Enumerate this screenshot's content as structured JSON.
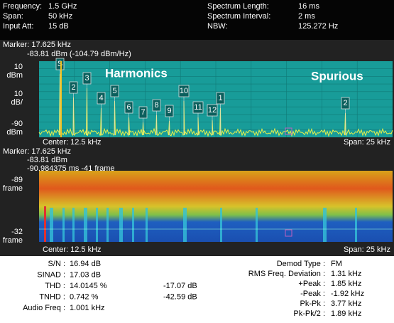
{
  "header": {
    "left": [
      {
        "label": "Frequency:",
        "value": "1.5 GHz"
      },
      {
        "label": "Span:",
        "value": "50 kHz"
      },
      {
        "label": "Input Att:",
        "value": "15 dB"
      }
    ],
    "right": [
      {
        "label": "Spectrum Length:",
        "value": "16 ms"
      },
      {
        "label": "Spectrum Interval:",
        "value": "2 ms"
      },
      {
        "label": "NBW:",
        "value": "125.272 Hz"
      }
    ]
  },
  "spectrum": {
    "marker": "Marker: 17.625 kHz",
    "marker_level": "-83.81 dBm (-104.79 dBm/Hz)",
    "ref_value": "10",
    "ref_unit": "dBm",
    "scale_value": "10",
    "scale_unit": "dB/",
    "bottom_value": "-90",
    "bottom_unit": "dBm",
    "harmonics": "Harmonics",
    "spurious": "Spurious",
    "markers": [
      "S",
      "2",
      "3",
      "4",
      "5",
      "6",
      "7",
      "8",
      "9",
      "10",
      "11",
      "12",
      "1",
      "2"
    ],
    "center": "Center: 12.5 kHz",
    "span": "Span: 25 kHz"
  },
  "spectrogram": {
    "marker": "Marker: 17.625 kHz",
    "marker_level": "-83.81 dBm",
    "marker_time": "-90.984375 ms  -41 frame",
    "top_value": "-89",
    "top_unit": "frame",
    "bottom_value": "-32",
    "bottom_unit": "frame",
    "center": "Center: 12.5 kHz",
    "span": "Span: 25 kHz"
  },
  "results": {
    "left": [
      {
        "label": "S/N :",
        "value": "16.94 dB"
      },
      {
        "label": "SINAD :",
        "value": "17.03 dB"
      },
      {
        "label": "THD :",
        "value": "14.0145 %",
        "db": "-17.07 dB"
      },
      {
        "label": "TNHD :",
        "value": "0.742 %",
        "db": "-42.59 dB"
      },
      {
        "label": "Audio Freq :",
        "value": "1.001 kHz"
      }
    ],
    "right": [
      {
        "label": "Demod Type :",
        "value": "FM"
      },
      {
        "label": "RMS Freq. Deviation :",
        "value": "1.31 kHz"
      },
      {
        "label": "+Peak :",
        "value": "1.85 kHz"
      },
      {
        "label": "-Peak :",
        "value": "-1.92 kHz"
      },
      {
        "label": "Pk-Pk :",
        "value": "3.77 kHz"
      },
      {
        "label": "Pk-Pk/2 :",
        "value": "1.89 kHz"
      }
    ]
  }
}
